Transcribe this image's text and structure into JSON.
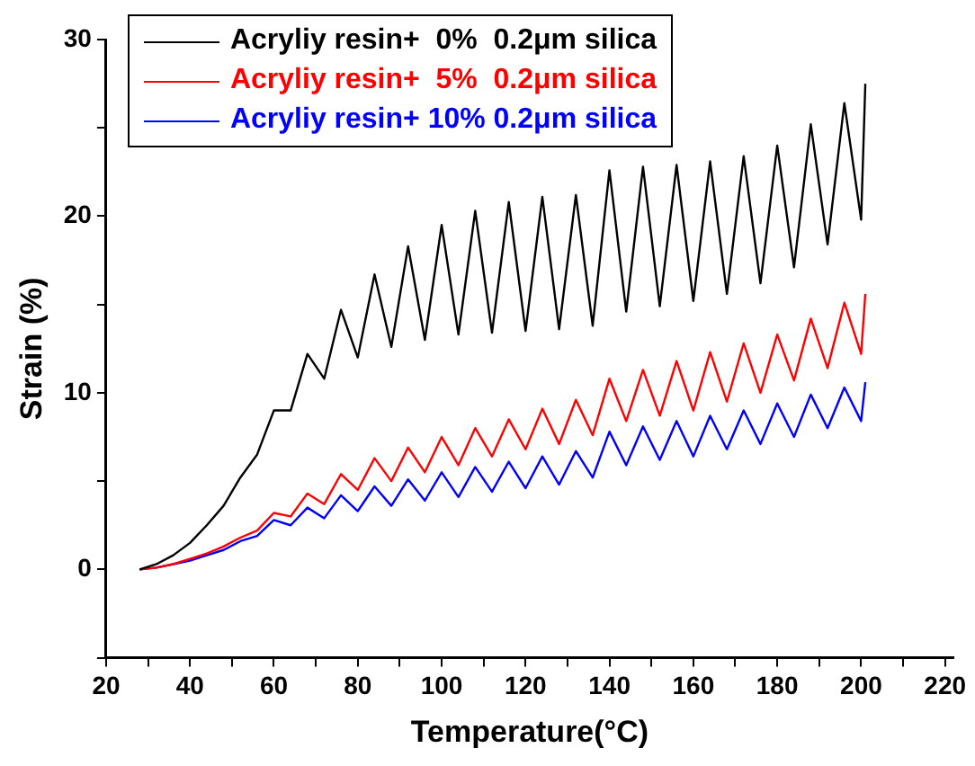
{
  "chart_data": {
    "type": "line",
    "xlabel": "Temperature(°C)",
    "ylabel": "Strain (%)",
    "xlim": [
      20,
      222
    ],
    "ylim": [
      -5,
      30
    ],
    "xticks": [
      20,
      {
        "value": 30,
        "label": null
      },
      40,
      {
        "value": 50,
        "label": null
      },
      60,
      {
        "value": 70,
        "label": null
      },
      80,
      {
        "value": 90,
        "label": null
      },
      100,
      {
        "value": 110,
        "label": null
      },
      120,
      {
        "value": 130,
        "label": null
      },
      140,
      {
        "value": 150,
        "label": null
      },
      160,
      {
        "value": 170,
        "label": null
      },
      180,
      {
        "value": 190,
        "label": null
      },
      200,
      {
        "value": 210,
        "label": null
      },
      220
    ],
    "yticks": [
      {
        "value": -5,
        "label": null
      },
      0,
      {
        "value": 5,
        "label": null
      },
      10,
      {
        "value": 15,
        "label": null
      },
      20,
      {
        "value": 25,
        "label": null
      },
      30
    ],
    "grid": false,
    "legend": "top left",
    "marker": "none",
    "line_style": "solid",
    "x": [
      28,
      32,
      36,
      40,
      44,
      48,
      52,
      56,
      60,
      64,
      68,
      72,
      76,
      80,
      84,
      88,
      92,
      96,
      100,
      104,
      108,
      112,
      116,
      120,
      124,
      128,
      132,
      136,
      140,
      144,
      148,
      152,
      156,
      160,
      164,
      168,
      172,
      176,
      180,
      184,
      188,
      192,
      196,
      200,
      201
    ],
    "series": [
      {
        "name": "Acryliy resin+  0%  0.2μm silica",
        "color": "#000000",
        "values": [
          0,
          0.3,
          0.8,
          1.5,
          2.5,
          3.6,
          5.2,
          6.5,
          9,
          9,
          12.2,
          10.8,
          14.7,
          12,
          16.7,
          12.6,
          18.3,
          13,
          19.5,
          13.3,
          20.3,
          13.4,
          20.8,
          13.5,
          21.1,
          13.6,
          21.2,
          13.8,
          22.6,
          14.6,
          22.8,
          14.9,
          22.9,
          15.2,
          23.1,
          15.6,
          23.4,
          16.2,
          24,
          17.1,
          25.2,
          18.4,
          26.4,
          19.8,
          27.5
        ]
      },
      {
        "name": "Acryliy resin+  5%  0.2μm silica",
        "color": "#ff0000",
        "values": [
          0,
          0.1,
          0.3,
          0.6,
          0.9,
          1.3,
          1.8,
          2.2,
          3.2,
          3,
          4.3,
          3.7,
          5.4,
          4.5,
          6.3,
          5,
          6.9,
          5.5,
          7.5,
          5.9,
          8,
          6.4,
          8.5,
          6.8,
          9.1,
          7.1,
          9.6,
          7.6,
          10.8,
          8.4,
          11.3,
          8.7,
          11.8,
          9,
          12.3,
          9.5,
          12.8,
          10,
          13.3,
          10.7,
          14.2,
          11.4,
          15.1,
          12.2,
          15.6
        ]
      },
      {
        "name": "Acryliy resin+ 10% 0.2μm silica",
        "color": "#0000ff",
        "values": [
          0,
          0.1,
          0.3,
          0.5,
          0.8,
          1.1,
          1.6,
          1.9,
          2.8,
          2.5,
          3.5,
          2.9,
          4.2,
          3.3,
          4.7,
          3.6,
          5.1,
          3.9,
          5.5,
          4.1,
          5.8,
          4.4,
          6.1,
          4.6,
          6.4,
          4.8,
          6.7,
          5.2,
          7.8,
          5.9,
          8.1,
          6.2,
          8.4,
          6.4,
          8.7,
          6.8,
          9,
          7.1,
          9.4,
          7.5,
          9.9,
          8,
          10.3,
          8.4,
          10.6
        ]
      }
    ]
  }
}
